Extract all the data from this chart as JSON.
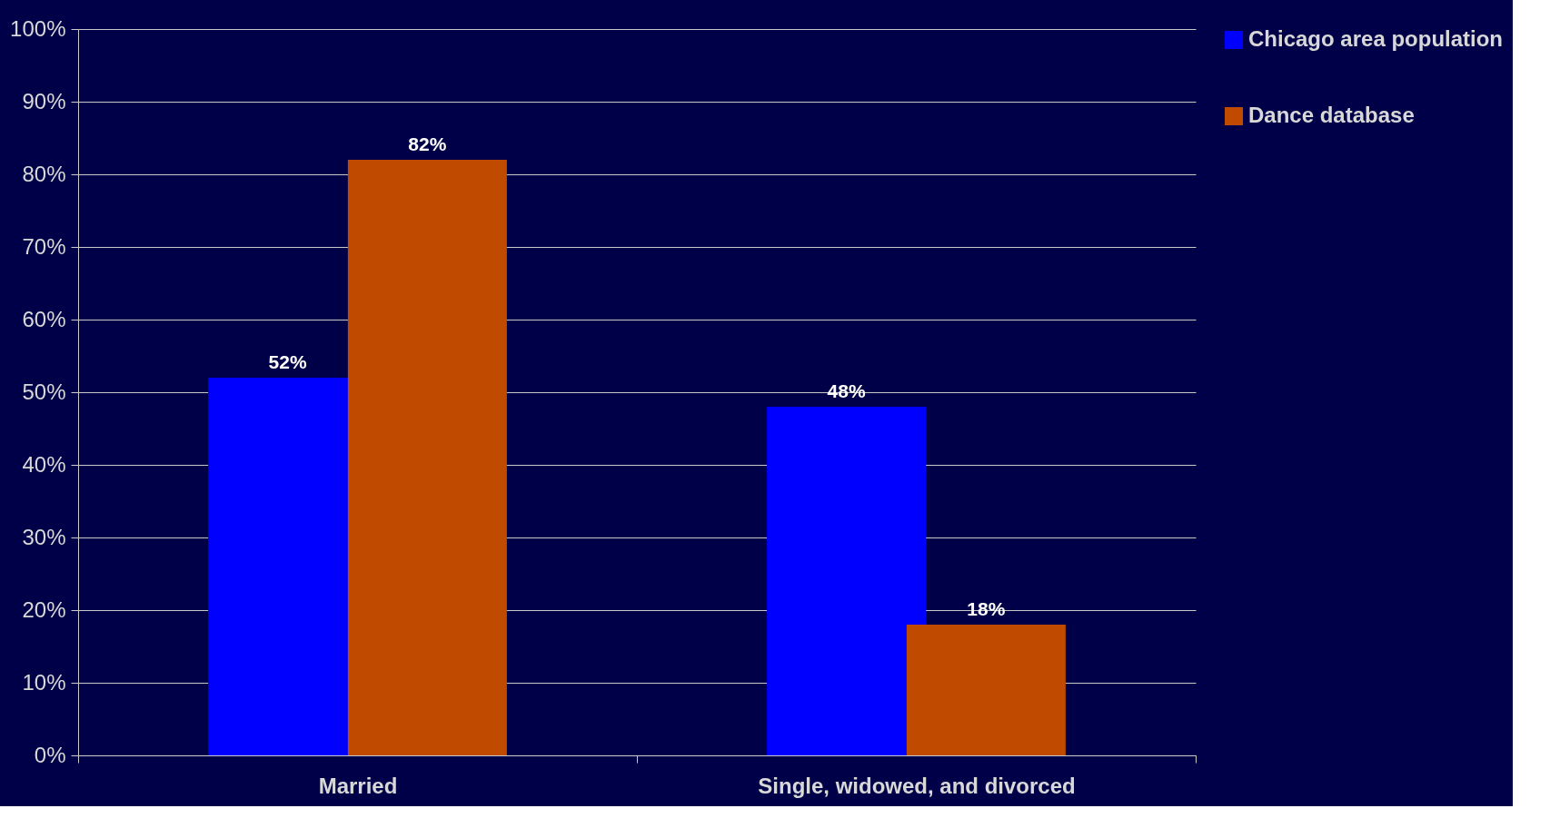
{
  "chart_data": {
    "type": "bar",
    "categories": [
      "Married",
      "Single, widowed, and divorced"
    ],
    "series": [
      {
        "name": "Chicago area population",
        "color": "#0000ff",
        "values": [
          52,
          48
        ],
        "value_labels": [
          "52%",
          "48%"
        ]
      },
      {
        "name": "Dance database",
        "color": "#c04a00",
        "values": [
          82,
          18
        ],
        "value_labels": [
          "82%",
          "18%"
        ]
      }
    ],
    "ylim": [
      0,
      100
    ],
    "yticks": [
      {
        "value": 0,
        "label": "0%"
      },
      {
        "value": 10,
        "label": "10%"
      },
      {
        "value": 20,
        "label": "20%"
      },
      {
        "value": 30,
        "label": "30%"
      },
      {
        "value": 40,
        "label": "40%"
      },
      {
        "value": 50,
        "label": "50%"
      },
      {
        "value": 60,
        "label": "60%"
      },
      {
        "value": 70,
        "label": "70%"
      },
      {
        "value": 80,
        "label": "80%"
      },
      {
        "value": 90,
        "label": "90%"
      },
      {
        "value": 100,
        "label": "100%"
      }
    ],
    "grid": "y",
    "legend": "right"
  }
}
